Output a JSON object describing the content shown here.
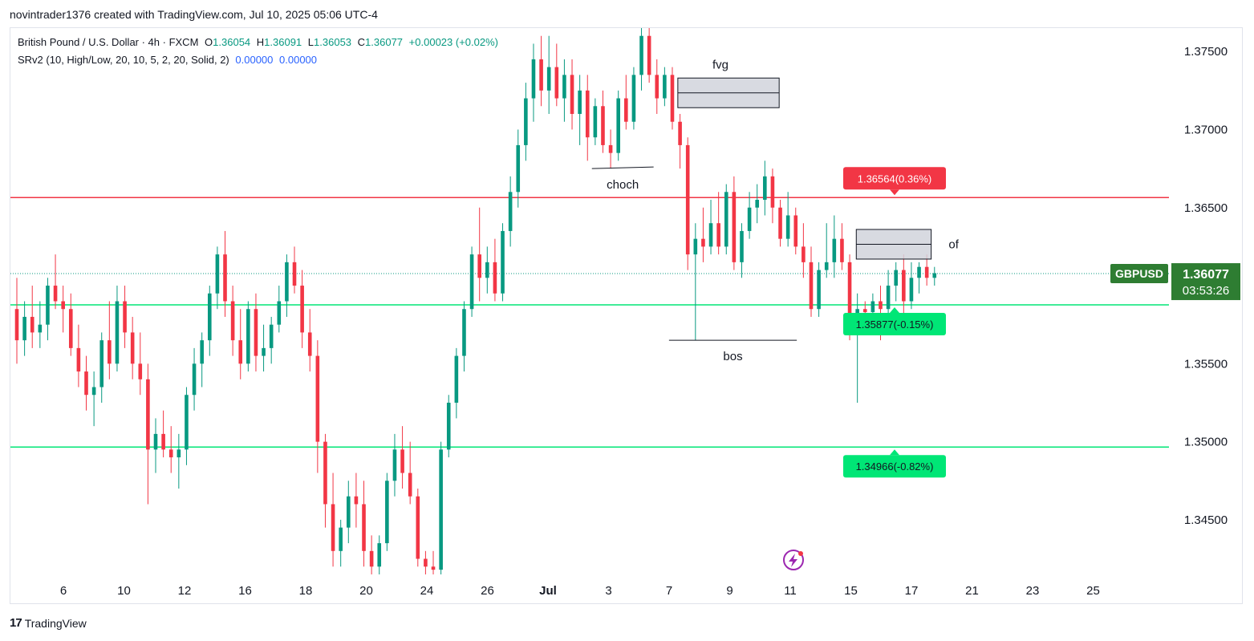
{
  "header": {
    "credit": "novintrader1376 created with TradingView.com, Jul 10, 2025 05:06 UTC-4"
  },
  "legend": {
    "symbol_line": {
      "name": "British Pound / U.S. Dollar · 4h · FXCM",
      "o_label": "O",
      "o": "1.36054",
      "h_label": "H",
      "h": "1.36091",
      "l_label": "L",
      "l": "1.36053",
      "c_label": "C",
      "c": "1.36077",
      "change": "+0.00023 (+0.02%)"
    },
    "indicator_line": {
      "name": "SRv2 (10, High/Low, 20, 10, 5, 2, 20, Solid, 2)",
      "v1": "0.00000",
      "v2": "0.00000"
    }
  },
  "footer": {
    "brand": "TradingView",
    "mark": "17"
  },
  "colors": {
    "up": "#089981",
    "down": "#f23645",
    "up_body": "#22ab94",
    "resistance": "#f23645",
    "support": "#00e676",
    "box_fill": "#d1d4dc",
    "badge_red": "#f23645",
    "badge_green": "#00e676",
    "symbol_badge": "#2e7d32"
  },
  "chart_data": {
    "type": "candlestick",
    "symbol": "GBPUSD",
    "timeframe": "4h",
    "ylim": [
      1.3415,
      1.3765
    ],
    "y_ticks": [
      "1.37500",
      "1.37000",
      "1.36500",
      "1.36000",
      "1.35500",
      "1.35000",
      "1.34500"
    ],
    "x_ticks": [
      "6",
      "10",
      "12",
      "16",
      "18",
      "20",
      "24",
      "26",
      "Jul",
      "3",
      "7",
      "9",
      "11",
      "15",
      "17",
      "21",
      "23",
      "25"
    ],
    "candles": [
      {
        "t": 0,
        "o": 1.3585,
        "h": 1.3605,
        "l": 1.355,
        "c": 1.3565
      },
      {
        "t": 0.35,
        "o": 1.3565,
        "h": 1.359,
        "l": 1.3555,
        "c": 1.358
      },
      {
        "t": 0.7,
        "o": 1.358,
        "h": 1.36,
        "l": 1.356,
        "c": 1.357
      },
      {
        "t": 1.05,
        "o": 1.357,
        "h": 1.359,
        "l": 1.356,
        "c": 1.3575
      },
      {
        "t": 1.4,
        "o": 1.3575,
        "h": 1.3605,
        "l": 1.3565,
        "c": 1.36
      },
      {
        "t": 1.75,
        "o": 1.36,
        "h": 1.362,
        "l": 1.3585,
        "c": 1.359
      },
      {
        "t": 2.1,
        "o": 1.359,
        "h": 1.36,
        "l": 1.357,
        "c": 1.3585
      },
      {
        "t": 2.45,
        "o": 1.3585,
        "h": 1.3595,
        "l": 1.3555,
        "c": 1.356
      },
      {
        "t": 2.8,
        "o": 1.356,
        "h": 1.3575,
        "l": 1.3535,
        "c": 1.3545
      },
      {
        "t": 3.15,
        "o": 1.3545,
        "h": 1.3555,
        "l": 1.352,
        "c": 1.353
      },
      {
        "t": 3.5,
        "o": 1.353,
        "h": 1.3545,
        "l": 1.351,
        "c": 1.3535
      },
      {
        "t": 3.85,
        "o": 1.3535,
        "h": 1.357,
        "l": 1.3525,
        "c": 1.3565
      },
      {
        "t": 4.2,
        "o": 1.3565,
        "h": 1.359,
        "l": 1.354,
        "c": 1.355
      },
      {
        "t": 4.55,
        "o": 1.355,
        "h": 1.36,
        "l": 1.3545,
        "c": 1.359
      },
      {
        "t": 4.9,
        "o": 1.359,
        "h": 1.36,
        "l": 1.356,
        "c": 1.357
      },
      {
        "t": 5.25,
        "o": 1.357,
        "h": 1.358,
        "l": 1.354,
        "c": 1.355
      },
      {
        "t": 5.6,
        "o": 1.355,
        "h": 1.357,
        "l": 1.353,
        "c": 1.354
      },
      {
        "t": 5.95,
        "o": 1.354,
        "h": 1.355,
        "l": 1.346,
        "c": 1.3495
      },
      {
        "t": 6.3,
        "o": 1.3495,
        "h": 1.3515,
        "l": 1.348,
        "c": 1.3505
      },
      {
        "t": 6.65,
        "o": 1.3505,
        "h": 1.352,
        "l": 1.349,
        "c": 1.3495
      },
      {
        "t": 7.0,
        "o": 1.3495,
        "h": 1.351,
        "l": 1.348,
        "c": 1.349
      },
      {
        "t": 7.35,
        "o": 1.349,
        "h": 1.3505,
        "l": 1.347,
        "c": 1.3495
      },
      {
        "t": 7.7,
        "o": 1.3495,
        "h": 1.3535,
        "l": 1.3485,
        "c": 1.353
      },
      {
        "t": 8.05,
        "o": 1.353,
        "h": 1.356,
        "l": 1.352,
        "c": 1.355
      },
      {
        "t": 8.4,
        "o": 1.355,
        "h": 1.357,
        "l": 1.3535,
        "c": 1.3565
      },
      {
        "t": 8.75,
        "o": 1.3565,
        "h": 1.36,
        "l": 1.3555,
        "c": 1.3595
      },
      {
        "t": 9.1,
        "o": 1.3595,
        "h": 1.3625,
        "l": 1.3585,
        "c": 1.362
      },
      {
        "t": 9.45,
        "o": 1.362,
        "h": 1.3635,
        "l": 1.358,
        "c": 1.359
      },
      {
        "t": 9.8,
        "o": 1.359,
        "h": 1.36,
        "l": 1.3555,
        "c": 1.3565
      },
      {
        "t": 10.15,
        "o": 1.3565,
        "h": 1.3585,
        "l": 1.354,
        "c": 1.355
      },
      {
        "t": 10.5,
        "o": 1.355,
        "h": 1.359,
        "l": 1.3545,
        "c": 1.3585
      },
      {
        "t": 10.85,
        "o": 1.3585,
        "h": 1.3595,
        "l": 1.3545,
        "c": 1.3555
      },
      {
        "t": 11.2,
        "o": 1.3555,
        "h": 1.3575,
        "l": 1.3545,
        "c": 1.356
      },
      {
        "t": 11.55,
        "o": 1.356,
        "h": 1.358,
        "l": 1.355,
        "c": 1.3575
      },
      {
        "t": 11.9,
        "o": 1.3575,
        "h": 1.36,
        "l": 1.357,
        "c": 1.359
      },
      {
        "t": 12.25,
        "o": 1.359,
        "h": 1.362,
        "l": 1.358,
        "c": 1.3615
      },
      {
        "t": 12.6,
        "o": 1.3615,
        "h": 1.3625,
        "l": 1.3595,
        "c": 1.36
      },
      {
        "t": 12.95,
        "o": 1.36,
        "h": 1.361,
        "l": 1.356,
        "c": 1.357
      },
      {
        "t": 13.3,
        "o": 1.357,
        "h": 1.3585,
        "l": 1.3545,
        "c": 1.3555
      },
      {
        "t": 13.65,
        "o": 1.3555,
        "h": 1.3565,
        "l": 1.348,
        "c": 1.35
      },
      {
        "t": 14.0,
        "o": 1.35,
        "h": 1.3505,
        "l": 1.3445,
        "c": 1.346
      },
      {
        "t": 14.35,
        "o": 1.346,
        "h": 1.348,
        "l": 1.342,
        "c": 1.343
      },
      {
        "t": 14.7,
        "o": 1.343,
        "h": 1.345,
        "l": 1.342,
        "c": 1.3445
      },
      {
        "t": 15.05,
        "o": 1.3445,
        "h": 1.3475,
        "l": 1.3435,
        "c": 1.3465
      },
      {
        "t": 15.4,
        "o": 1.3465,
        "h": 1.348,
        "l": 1.3445,
        "c": 1.346
      },
      {
        "t": 15.75,
        "o": 1.346,
        "h": 1.3475,
        "l": 1.342,
        "c": 1.343
      },
      {
        "t": 16.1,
        "o": 1.343,
        "h": 1.344,
        "l": 1.3415,
        "c": 1.342
      },
      {
        "t": 16.45,
        "o": 1.342,
        "h": 1.344,
        "l": 1.3415,
        "c": 1.3435
      },
      {
        "t": 16.8,
        "o": 1.3435,
        "h": 1.348,
        "l": 1.343,
        "c": 1.3475
      },
      {
        "t": 17.15,
        "o": 1.3475,
        "h": 1.3505,
        "l": 1.3465,
        "c": 1.3495
      },
      {
        "t": 17.5,
        "o": 1.3495,
        "h": 1.351,
        "l": 1.347,
        "c": 1.348
      },
      {
        "t": 17.85,
        "o": 1.348,
        "h": 1.35,
        "l": 1.346,
        "c": 1.3465
      },
      {
        "t": 18.2,
        "o": 1.3465,
        "h": 1.347,
        "l": 1.342,
        "c": 1.3425
      },
      {
        "t": 18.55,
        "o": 1.3425,
        "h": 1.343,
        "l": 1.3415,
        "c": 1.342
      },
      {
        "t": 18.9,
        "o": 1.342,
        "h": 1.343,
        "l": 1.3415,
        "c": 1.3418
      },
      {
        "t": 19.25,
        "o": 1.3418,
        "h": 1.35,
        "l": 1.3415,
        "c": 1.3495
      },
      {
        "t": 19.6,
        "o": 1.3495,
        "h": 1.353,
        "l": 1.349,
        "c": 1.3525
      },
      {
        "t": 19.95,
        "o": 1.3525,
        "h": 1.356,
        "l": 1.3515,
        "c": 1.3555
      },
      {
        "t": 20.3,
        "o": 1.3555,
        "h": 1.359,
        "l": 1.3545,
        "c": 1.3585
      },
      {
        "t": 20.65,
        "o": 1.3585,
        "h": 1.3625,
        "l": 1.358,
        "c": 1.362
      },
      {
        "t": 21.0,
        "o": 1.362,
        "h": 1.365,
        "l": 1.359,
        "c": 1.3605
      },
      {
        "t": 21.35,
        "o": 1.3605,
        "h": 1.3625,
        "l": 1.3595,
        "c": 1.3615
      },
      {
        "t": 21.7,
        "o": 1.3615,
        "h": 1.363,
        "l": 1.359,
        "c": 1.3595
      },
      {
        "t": 22.05,
        "o": 1.3595,
        "h": 1.364,
        "l": 1.359,
        "c": 1.3635
      },
      {
        "t": 22.4,
        "o": 1.3635,
        "h": 1.367,
        "l": 1.3625,
        "c": 1.366
      },
      {
        "t": 22.75,
        "o": 1.366,
        "h": 1.37,
        "l": 1.365,
        "c": 1.369
      },
      {
        "t": 23.1,
        "o": 1.369,
        "h": 1.373,
        "l": 1.368,
        "c": 1.372
      },
      {
        "t": 23.45,
        "o": 1.372,
        "h": 1.3755,
        "l": 1.3705,
        "c": 1.3745
      },
      {
        "t": 23.8,
        "o": 1.3745,
        "h": 1.376,
        "l": 1.3715,
        "c": 1.3725
      },
      {
        "t": 24.15,
        "o": 1.3725,
        "h": 1.376,
        "l": 1.371,
        "c": 1.374
      },
      {
        "t": 24.5,
        "o": 1.374,
        "h": 1.3755,
        "l": 1.3715,
        "c": 1.372
      },
      {
        "t": 24.85,
        "o": 1.372,
        "h": 1.3745,
        "l": 1.3705,
        "c": 1.3735
      },
      {
        "t": 25.2,
        "o": 1.3735,
        "h": 1.3745,
        "l": 1.37,
        "c": 1.371
      },
      {
        "t": 25.55,
        "o": 1.371,
        "h": 1.3735,
        "l": 1.369,
        "c": 1.3725
      },
      {
        "t": 25.9,
        "o": 1.3725,
        "h": 1.3735,
        "l": 1.368,
        "c": 1.3695
      },
      {
        "t": 26.25,
        "o": 1.3695,
        "h": 1.372,
        "l": 1.369,
        "c": 1.3715
      },
      {
        "t": 26.6,
        "o": 1.3715,
        "h": 1.3725,
        "l": 1.3685,
        "c": 1.369
      },
      {
        "t": 26.95,
        "o": 1.369,
        "h": 1.37,
        "l": 1.3675,
        "c": 1.3685
      },
      {
        "t": 27.3,
        "o": 1.3685,
        "h": 1.3725,
        "l": 1.368,
        "c": 1.372
      },
      {
        "t": 27.65,
        "o": 1.372,
        "h": 1.3735,
        "l": 1.37,
        "c": 1.3705
      },
      {
        "t": 28.0,
        "o": 1.3705,
        "h": 1.374,
        "l": 1.37,
        "c": 1.3735
      },
      {
        "t": 28.35,
        "o": 1.3735,
        "h": 1.3765,
        "l": 1.3725,
        "c": 1.376
      },
      {
        "t": 28.7,
        "o": 1.376,
        "h": 1.3765,
        "l": 1.373,
        "c": 1.3735
      },
      {
        "t": 29.05,
        "o": 1.3735,
        "h": 1.3745,
        "l": 1.371,
        "c": 1.372
      },
      {
        "t": 29.4,
        "o": 1.372,
        "h": 1.374,
        "l": 1.3715,
        "c": 1.3735
      },
      {
        "t": 29.75,
        "o": 1.3735,
        "h": 1.374,
        "l": 1.37,
        "c": 1.3705
      },
      {
        "t": 30.1,
        "o": 1.3705,
        "h": 1.371,
        "l": 1.3675,
        "c": 1.369
      },
      {
        "t": 30.45,
        "o": 1.369,
        "h": 1.3695,
        "l": 1.361,
        "c": 1.362
      },
      {
        "t": 30.8,
        "o": 1.362,
        "h": 1.364,
        "l": 1.3565,
        "c": 1.363
      },
      {
        "t": 31.15,
        "o": 1.363,
        "h": 1.365,
        "l": 1.3615,
        "c": 1.3625
      },
      {
        "t": 31.5,
        "o": 1.3625,
        "h": 1.3655,
        "l": 1.362,
        "c": 1.364
      },
      {
        "t": 31.85,
        "o": 1.364,
        "h": 1.366,
        "l": 1.362,
        "c": 1.3625
      },
      {
        "t": 32.2,
        "o": 1.3625,
        "h": 1.3665,
        "l": 1.362,
        "c": 1.366
      },
      {
        "t": 32.55,
        "o": 1.366,
        "h": 1.367,
        "l": 1.361,
        "c": 1.3615
      },
      {
        "t": 32.9,
        "o": 1.3615,
        "h": 1.364,
        "l": 1.3605,
        "c": 1.3635
      },
      {
        "t": 33.25,
        "o": 1.3635,
        "h": 1.366,
        "l": 1.363,
        "c": 1.365
      },
      {
        "t": 33.6,
        "o": 1.365,
        "h": 1.3665,
        "l": 1.364,
        "c": 1.3655
      },
      {
        "t": 33.95,
        "o": 1.3655,
        "h": 1.368,
        "l": 1.3645,
        "c": 1.367
      },
      {
        "t": 34.3,
        "o": 1.367,
        "h": 1.3675,
        "l": 1.364,
        "c": 1.365
      },
      {
        "t": 34.65,
        "o": 1.365,
        "h": 1.3655,
        "l": 1.3625,
        "c": 1.363
      },
      {
        "t": 35.0,
        "o": 1.363,
        "h": 1.366,
        "l": 1.3625,
        "c": 1.3645
      },
      {
        "t": 35.35,
        "o": 1.3645,
        "h": 1.365,
        "l": 1.362,
        "c": 1.3625
      },
      {
        "t": 35.7,
        "o": 1.3625,
        "h": 1.364,
        "l": 1.3605,
        "c": 1.3615
      },
      {
        "t": 36.05,
        "o": 1.3615,
        "h": 1.3625,
        "l": 1.358,
        "c": 1.3585
      },
      {
        "t": 36.4,
        "o": 1.3585,
        "h": 1.3615,
        "l": 1.358,
        "c": 1.361
      },
      {
        "t": 36.75,
        "o": 1.361,
        "h": 1.364,
        "l": 1.3605,
        "c": 1.3615
      },
      {
        "t": 37.1,
        "o": 1.3615,
        "h": 1.3645,
        "l": 1.3605,
        "c": 1.363
      },
      {
        "t": 37.45,
        "o": 1.363,
        "h": 1.364,
        "l": 1.361,
        "c": 1.3615
      },
      {
        "t": 37.8,
        "o": 1.3615,
        "h": 1.362,
        "l": 1.3565,
        "c": 1.358
      },
      {
        "t": 38.15,
        "o": 1.358,
        "h": 1.3595,
        "l": 1.3525,
        "c": 1.3585
      },
      {
        "t": 38.5,
        "o": 1.3585,
        "h": 1.359,
        "l": 1.3575,
        "c": 1.3583
      },
      {
        "t": 38.85,
        "o": 1.3583,
        "h": 1.3595,
        "l": 1.358,
        "c": 1.359
      },
      {
        "t": 39.2,
        "o": 1.359,
        "h": 1.36,
        "l": 1.3565,
        "c": 1.3585
      },
      {
        "t": 39.55,
        "o": 1.3585,
        "h": 1.361,
        "l": 1.358,
        "c": 1.36
      },
      {
        "t": 39.9,
        "o": 1.36,
        "h": 1.3615,
        "l": 1.359,
        "c": 1.361
      },
      {
        "t": 40.25,
        "o": 1.361,
        "h": 1.362,
        "l": 1.358,
        "c": 1.359
      },
      {
        "t": 40.6,
        "o": 1.359,
        "h": 1.3615,
        "l": 1.3585,
        "c": 1.3605
      },
      {
        "t": 40.95,
        "o": 1.3605,
        "h": 1.3615,
        "l": 1.3595,
        "c": 1.3612
      },
      {
        "t": 41.3,
        "o": 1.3612,
        "h": 1.362,
        "l": 1.36,
        "c": 1.3605
      },
      {
        "t": 41.65,
        "o": 1.3605,
        "h": 1.3612,
        "l": 1.36,
        "c": 1.3608
      }
    ],
    "levels": [
      {
        "name": "resistance",
        "value": 1.36564,
        "label": "1.36564(0.36%)"
      },
      {
        "name": "support-1",
        "value": 1.35877,
        "label": "1.35877(-0.15%)"
      },
      {
        "name": "support-2",
        "value": 1.34966,
        "label": "1.34966(-0.82%)"
      }
    ],
    "last_price": {
      "symbol": "GBPUSD",
      "value": "1.36077",
      "countdown": "03:53:26",
      "y": 1.36077
    },
    "annotations": [
      {
        "label": "fvg",
        "type": "box",
        "t1": 30.0,
        "t2": 34.6,
        "y1": 1.3714,
        "y2": 1.3733
      },
      {
        "label": "of",
        "type": "box",
        "t1": 38.1,
        "t2": 41.5,
        "y1": 1.3617,
        "y2": 1.3636
      },
      {
        "label": "choch",
        "type": "line",
        "t1": 26.1,
        "t2": 28.9,
        "y": 1.3675
      },
      {
        "label": "bos",
        "type": "line",
        "t1": 29.6,
        "t2": 35.4,
        "y": 1.3565
      }
    ],
    "x_tick_positions": [
      1.8,
      3.9,
      6.0,
      8.1,
      10.2,
      12.3,
      14.4,
      16.5,
      18.6,
      20.7,
      22.8,
      24.9,
      27.0,
      29.1,
      31.2,
      33.3,
      35.4,
      37.5
    ]
  }
}
